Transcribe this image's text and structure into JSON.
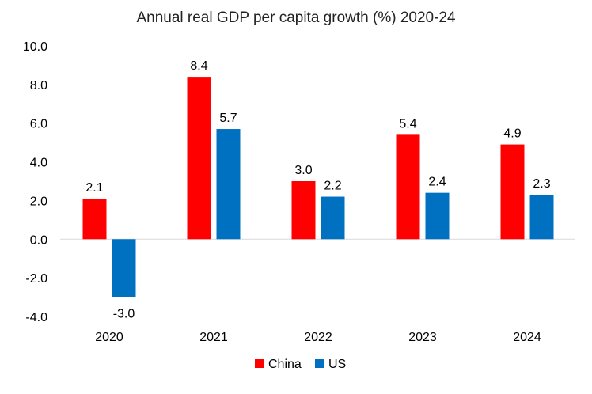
{
  "chart_data": {
    "type": "bar",
    "title": "Annual real GDP per capita growth (%) 2020-24",
    "categories": [
      "2020",
      "2021",
      "2022",
      "2023",
      "2024"
    ],
    "series": [
      {
        "name": "China",
        "color": "#ff0000",
        "values": [
          2.1,
          8.4,
          3.0,
          5.4,
          4.9
        ],
        "labels": [
          "2.1",
          "8.4",
          "3.0",
          "5.4",
          "4.9"
        ]
      },
      {
        "name": "US",
        "color": "#0070c0",
        "values": [
          -3.0,
          5.7,
          2.2,
          2.4,
          2.3
        ],
        "labels": [
          "-3.0",
          "5.7",
          "2.2",
          "2.4",
          "2.3"
        ]
      }
    ],
    "yticks": [
      -4.0,
      -2.0,
      0.0,
      2.0,
      4.0,
      6.0,
      8.0,
      10.0
    ],
    "ytick_labels": [
      "-4.0",
      "-2.0",
      "0.0",
      "2.0",
      "4.0",
      "6.0",
      "8.0",
      "10.0"
    ],
    "ylim": [
      -4,
      10
    ],
    "grid": false,
    "legend_position": "bottom",
    "xlabel": "",
    "ylabel": ""
  }
}
